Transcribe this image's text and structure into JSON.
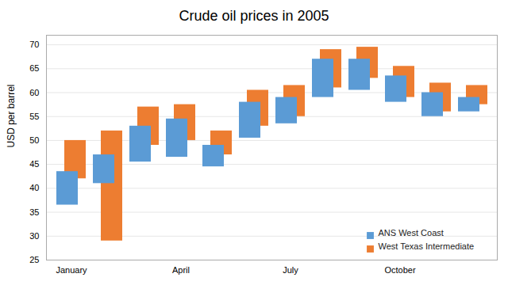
{
  "chart_data": {
    "type": "bar",
    "title": "Crude oil prices in 2005",
    "ylabel": "USD per barrel",
    "categories": [
      "January",
      null,
      null,
      "April",
      null,
      null,
      "July",
      null,
      null,
      "October",
      null,
      null
    ],
    "series": [
      {
        "name": "ANS West Coast",
        "color": "#5B9BD5",
        "low": [
          36.5,
          41.0,
          45.5,
          46.5,
          44.5,
          50.5,
          53.5,
          59.0,
          60.5,
          58.0,
          55.0,
          56.0
        ],
        "high": [
          43.5,
          47.0,
          53.0,
          54.5,
          49.0,
          58.0,
          59.0,
          67.0,
          67.0,
          63.5,
          60.0,
          59.0
        ]
      },
      {
        "name": "West Texas Intermediate",
        "color": "#ED7D31",
        "low": [
          42.0,
          29.0,
          49.0,
          50.0,
          47.0,
          53.0,
          55.0,
          61.0,
          63.0,
          59.0,
          56.0,
          57.5
        ],
        "high": [
          50.0,
          52.0,
          57.0,
          57.5,
          52.0,
          60.5,
          61.5,
          69.0,
          69.5,
          65.5,
          62.0,
          61.5
        ]
      }
    ],
    "ylim": [
      25,
      72
    ],
    "yticks": [
      25,
      30,
      35,
      40,
      45,
      50,
      55,
      60,
      65,
      70
    ],
    "grid": true,
    "legend": "lower right"
  }
}
